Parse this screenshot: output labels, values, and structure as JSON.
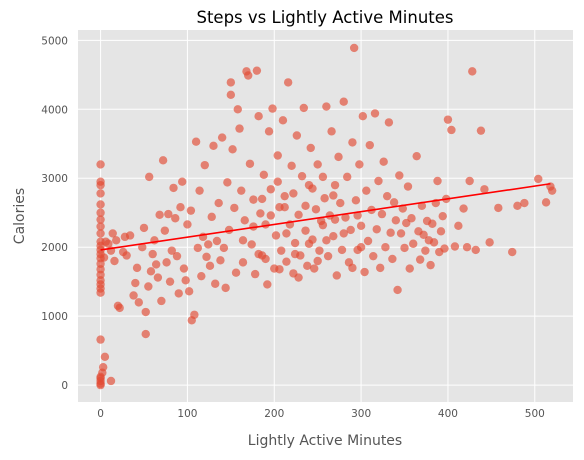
{
  "chart_data": {
    "type": "scatter",
    "title": "Steps vs Lightly Active Minutes",
    "xlabel": "Lightly Active Minutes",
    "ylabel": "Calories",
    "xlim": [
      -26,
      544
    ],
    "ylim": [
      -245,
      5150
    ],
    "x_ticks": [
      0,
      100,
      200,
      300,
      400,
      500
    ],
    "y_ticks": [
      0,
      1000,
      2000,
      3000,
      4000,
      5000
    ],
    "grid": true,
    "style": "ggplot",
    "colors": {
      "background": "#e5e5e5",
      "grid": "#ffffff",
      "points": "#e24a33",
      "trendline": "#ff0000",
      "tick_text": "#555555"
    },
    "trendline": {
      "x": [
        0,
        518
      ],
      "y": [
        1960,
        2920
      ]
    },
    "series": [
      {
        "points": [
          [
            0,
            0
          ],
          [
            0,
            20
          ],
          [
            0,
            60
          ],
          [
            0,
            100
          ],
          [
            0,
            120
          ],
          [
            2,
            180
          ],
          [
            3,
            260
          ],
          [
            5,
            410
          ],
          [
            0,
            660
          ],
          [
            12,
            60
          ],
          [
            0,
            1340
          ],
          [
            0,
            1400
          ],
          [
            0,
            1460
          ],
          [
            0,
            1520
          ],
          [
            0,
            1600
          ],
          [
            0,
            1680
          ],
          [
            0,
            1760
          ],
          [
            0,
            1840
          ],
          [
            0,
            1900
          ],
          [
            0,
            1960
          ],
          [
            0,
            2020
          ],
          [
            0,
            2080
          ],
          [
            0,
            2200
          ],
          [
            0,
            2300
          ],
          [
            0,
            2400
          ],
          [
            0,
            2500
          ],
          [
            0,
            2620
          ],
          [
            0,
            2780
          ],
          [
            0,
            2900
          ],
          [
            0,
            2950
          ],
          [
            0,
            3200
          ],
          [
            4,
            1850
          ],
          [
            6,
            2080
          ],
          [
            9,
            2050
          ],
          [
            12,
            1950
          ],
          [
            14,
            2200
          ],
          [
            16,
            1800
          ],
          [
            18,
            2100
          ],
          [
            20,
            1150
          ],
          [
            22,
            1120
          ],
          [
            26,
            1930
          ],
          [
            28,
            2150
          ],
          [
            30,
            1880
          ],
          [
            34,
            2170
          ],
          [
            38,
            1300
          ],
          [
            40,
            1480
          ],
          [
            42,
            1700
          ],
          [
            44,
            1200
          ],
          [
            48,
            2000
          ],
          [
            50,
            2280
          ],
          [
            52,
            1060
          ],
          [
            52,
            740
          ],
          [
            55,
            1430
          ],
          [
            56,
            3020
          ],
          [
            58,
            1650
          ],
          [
            60,
            1900
          ],
          [
            62,
            2100
          ],
          [
            64,
            1750
          ],
          [
            66,
            1560
          ],
          [
            68,
            2470
          ],
          [
            70,
            1220
          ],
          [
            72,
            3260
          ],
          [
            74,
            2240
          ],
          [
            76,
            1780
          ],
          [
            78,
            2480
          ],
          [
            80,
            1500
          ],
          [
            82,
            1950
          ],
          [
            84,
            2860
          ],
          [
            86,
            2420
          ],
          [
            88,
            1870
          ],
          [
            90,
            1330
          ],
          [
            92,
            2580
          ],
          [
            94,
            2950
          ],
          [
            96,
            1690
          ],
          [
            98,
            1520
          ],
          [
            100,
            2330
          ],
          [
            102,
            1360
          ],
          [
            104,
            2530
          ],
          [
            105,
            940
          ],
          [
            108,
            1020
          ],
          [
            110,
            3530
          ],
          [
            112,
            1990
          ],
          [
            114,
            2820
          ],
          [
            116,
            1580
          ],
          [
            118,
            2150
          ],
          [
            120,
            3190
          ],
          [
            122,
            1860
          ],
          [
            124,
            2040
          ],
          [
            126,
            1730
          ],
          [
            128,
            2440
          ],
          [
            130,
            3470
          ],
          [
            132,
            1470
          ],
          [
            134,
            2090
          ],
          [
            136,
            2640
          ],
          [
            138,
            1810
          ],
          [
            140,
            3590
          ],
          [
            142,
            1990
          ],
          [
            144,
            1410
          ],
          [
            146,
            2940
          ],
          [
            148,
            2250
          ],
          [
            150,
            4210
          ],
          [
            150,
            4390
          ],
          [
            152,
            3420
          ],
          [
            154,
            2570
          ],
          [
            156,
            1630
          ],
          [
            158,
            4000
          ],
          [
            160,
            3720
          ],
          [
            162,
            2820
          ],
          [
            164,
            1780
          ],
          [
            166,
            2390
          ],
          [
            168,
            4550
          ],
          [
            170,
            4490
          ],
          [
            172,
            3210
          ],
          [
            174,
            2040
          ],
          [
            176,
            2690
          ],
          [
            178,
            1610
          ],
          [
            180,
            4560
          ],
          [
            182,
            3900
          ],
          [
            184,
            2490
          ],
          [
            186,
            1880
          ],
          [
            188,
            3050
          ],
          [
            190,
            2330
          ],
          [
            192,
            1460
          ],
          [
            194,
            3680
          ],
          [
            196,
            2840
          ],
          [
            198,
            4010
          ],
          [
            200,
            1690
          ],
          [
            202,
            2170
          ],
          [
            204,
            3330
          ],
          [
            206,
            2580
          ],
          [
            208,
            1950
          ],
          [
            210,
            3840
          ],
          [
            212,
            2740
          ],
          [
            214,
            1790
          ],
          [
            216,
            4390
          ],
          [
            218,
            2330
          ],
          [
            220,
            3180
          ],
          [
            222,
            1620
          ],
          [
            224,
            2060
          ],
          [
            226,
            3620
          ],
          [
            228,
            2470
          ],
          [
            230,
            1880
          ],
          [
            232,
            3030
          ],
          [
            234,
            4020
          ],
          [
            236,
            2240
          ],
          [
            238,
            1730
          ],
          [
            240,
            2900
          ],
          [
            242,
            3440
          ],
          [
            244,
            2110
          ],
          [
            246,
            1690
          ],
          [
            248,
            2550
          ],
          [
            250,
            3200
          ],
          [
            252,
            1950
          ],
          [
            254,
            2380
          ],
          [
            256,
            3020
          ],
          [
            258,
            2710
          ],
          [
            260,
            4040
          ],
          [
            262,
            1870
          ],
          [
            264,
            2460
          ],
          [
            266,
            3680
          ],
          [
            268,
            2160
          ],
          [
            270,
            2900
          ],
          [
            272,
            1590
          ],
          [
            274,
            3310
          ],
          [
            276,
            2640
          ],
          [
            278,
            1960
          ],
          [
            280,
            4110
          ],
          [
            282,
            2430
          ],
          [
            284,
            3020
          ],
          [
            286,
            1780
          ],
          [
            288,
            2250
          ],
          [
            290,
            3520
          ],
          [
            292,
            4890
          ],
          [
            294,
            2680
          ],
          [
            296,
            1960
          ],
          [
            298,
            3200
          ],
          [
            300,
            2310
          ],
          [
            302,
            3900
          ],
          [
            304,
            1640
          ],
          [
            306,
            2820
          ],
          [
            308,
            2090
          ],
          [
            310,
            3480
          ],
          [
            312,
            2540
          ],
          [
            314,
            1870
          ],
          [
            316,
            3940
          ],
          [
            318,
            2260
          ],
          [
            320,
            2960
          ],
          [
            322,
            1700
          ],
          [
            324,
            2480
          ],
          [
            326,
            3240
          ],
          [
            328,
            2000
          ],
          [
            330,
            2740
          ],
          [
            332,
            3810
          ],
          [
            334,
            2210
          ],
          [
            336,
            1830
          ],
          [
            338,
            2650
          ],
          [
            340,
            2390
          ],
          [
            342,
            1380
          ],
          [
            344,
            3040
          ],
          [
            346,
            2200
          ],
          [
            348,
            2560
          ],
          [
            350,
            1990
          ],
          [
            352,
            2350
          ],
          [
            354,
            2880
          ],
          [
            356,
            1690
          ],
          [
            358,
            2420
          ],
          [
            360,
            2050
          ],
          [
            364,
            3320
          ],
          [
            366,
            2230
          ],
          [
            368,
            1820
          ],
          [
            370,
            2600
          ],
          [
            372,
            2180
          ],
          [
            374,
            1950
          ],
          [
            376,
            2380
          ],
          [
            378,
            2100
          ],
          [
            380,
            1740
          ],
          [
            382,
            2340
          ],
          [
            384,
            2070
          ],
          [
            386,
            2640
          ],
          [
            388,
            2960
          ],
          [
            390,
            1930
          ],
          [
            392,
            2230
          ],
          [
            394,
            2450
          ],
          [
            396,
            1980
          ],
          [
            398,
            2700
          ],
          [
            400,
            3850
          ],
          [
            404,
            3700
          ],
          [
            408,
            2010
          ],
          [
            412,
            2310
          ],
          [
            418,
            2560
          ],
          [
            422,
            2000
          ],
          [
            425,
            2960
          ],
          [
            428,
            4550
          ],
          [
            432,
            1960
          ],
          [
            438,
            3690
          ],
          [
            442,
            2840
          ],
          [
            448,
            2070
          ],
          [
            458,
            2570
          ],
          [
            474,
            1930
          ],
          [
            480,
            2600
          ],
          [
            488,
            2640
          ],
          [
            504,
            2990
          ],
          [
            513,
            2650
          ],
          [
            518,
            2880
          ],
          [
            520,
            2820
          ],
          [
            214,
            2200
          ],
          [
            196,
            2460
          ],
          [
            236,
            2600
          ],
          [
            260,
            2100
          ],
          [
            280,
            2200
          ],
          [
            300,
            2000
          ],
          [
            224,
            1900
          ],
          [
            206,
            1680
          ],
          [
            250,
            1800
          ],
          [
            186,
            2700
          ],
          [
            176,
            2300
          ],
          [
            164,
            2100
          ],
          [
            244,
            2850
          ],
          [
            270,
            2400
          ],
          [
            228,
            1560
          ],
          [
            290,
            1700
          ],
          [
            204,
            2950
          ],
          [
            190,
            1830
          ],
          [
            256,
            2320
          ],
          [
            212,
            2580
          ],
          [
            240,
            2050
          ],
          [
            182,
            1900
          ],
          [
            268,
            2750
          ],
          [
            222,
            2780
          ],
          [
            296,
            2460
          ]
        ]
      }
    ]
  }
}
